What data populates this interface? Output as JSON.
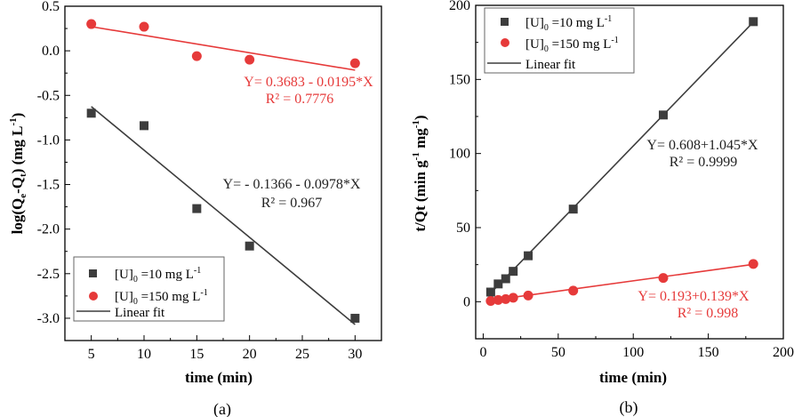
{
  "colors": {
    "black": "#3d3d3d",
    "red": "#e63a3a"
  },
  "chart_data": [
    {
      "type": "scatter",
      "panel_label": "(a)",
      "xlabel": "time (min)",
      "ylabel": "log(Qe-Qt)  (mg L-1)",
      "xlim": [
        2.5,
        32.5
      ],
      "ylim": [
        -3.25,
        0.5
      ],
      "xticks": [
        5,
        10,
        15,
        20,
        25,
        30
      ],
      "yticks": [
        0.5,
        0.0,
        -0.5,
        -1.0,
        -1.5,
        -2.0,
        -2.5,
        -3.0
      ],
      "ytick_labels": [
        "0.5",
        "0.0",
        "-0.5",
        "-1.0",
        "-1.5",
        "-2.0",
        "-2.5",
        "-3.0"
      ],
      "legend_position": "bottom-left",
      "legend": [
        "[U]0 =10 mg L-1",
        "[U]0 =150 mg L-1",
        "Linear fit"
      ],
      "series": [
        {
          "name": "[U]0 =10 mg L-1",
          "marker": "square",
          "color": "black",
          "x": [
            5,
            10,
            15,
            20,
            30
          ],
          "y": [
            -0.7,
            -0.84,
            -1.77,
            -2.19,
            -3.0
          ],
          "fit": {
            "intercept": -0.1366,
            "slope": -0.0978,
            "xrange": [
              5,
              30
            ]
          },
          "equation": "Y= - 0.1366 - 0.0978*X",
          "r2": "R² = 0.967"
        },
        {
          "name": "[U]0 =150 mg L-1",
          "marker": "circle",
          "color": "red",
          "x": [
            5,
            10,
            15,
            20,
            30
          ],
          "y": [
            0.3,
            0.27,
            -0.06,
            -0.1,
            -0.14
          ],
          "fit": {
            "intercept": 0.3683,
            "slope": -0.0195,
            "xrange": [
              5,
              30
            ]
          },
          "equation": "Y= 0.3683 - 0.0195*X",
          "r2": "R² = 0.7776"
        }
      ]
    },
    {
      "type": "scatter",
      "panel_label": "(b)",
      "xlabel": "time (min)",
      "ylabel": "t/Qt (min g-1 mg-1)",
      "xlim": [
        -5,
        200
      ],
      "ylim": [
        -25,
        200
      ],
      "xticks": [
        0,
        50,
        100,
        150,
        200
      ],
      "yticks": [
        0,
        50,
        100,
        150,
        200
      ],
      "ytick_labels": [
        "0",
        "50",
        "100",
        "150",
        "200"
      ],
      "legend_position": "top-left",
      "legend": [
        "[U]0 =10 mg L-1",
        "[U]0 =150 mg L-1",
        "Linear fit"
      ],
      "series": [
        {
          "name": "[U]0 =10 mg L-1",
          "marker": "square",
          "color": "black",
          "x": [
            5,
            10,
            15,
            20,
            30,
            60,
            120,
            180
          ],
          "y": [
            6.5,
            12,
            15.5,
            20.5,
            31,
            62.5,
            126,
            189
          ],
          "fit": {
            "intercept": 0.608,
            "slope": 1.045,
            "xrange": [
              5,
              180
            ]
          },
          "equation": "Y= 0.608+1.045*X",
          "r2": "R² = 0.9999"
        },
        {
          "name": "[U]0 =150 mg L-1",
          "marker": "circle",
          "color": "red",
          "x": [
            5,
            10,
            15,
            20,
            30,
            60,
            120,
            180
          ],
          "y": [
            0.5,
            1.2,
            1.8,
            2.7,
            4.2,
            7.5,
            16,
            25.5
          ],
          "fit": {
            "intercept": 0.193,
            "slope": 0.139,
            "xrange": [
              5,
              180
            ]
          },
          "equation": "Y= 0.193+0.139*X",
          "r2": "R² = 0.998"
        }
      ]
    }
  ]
}
